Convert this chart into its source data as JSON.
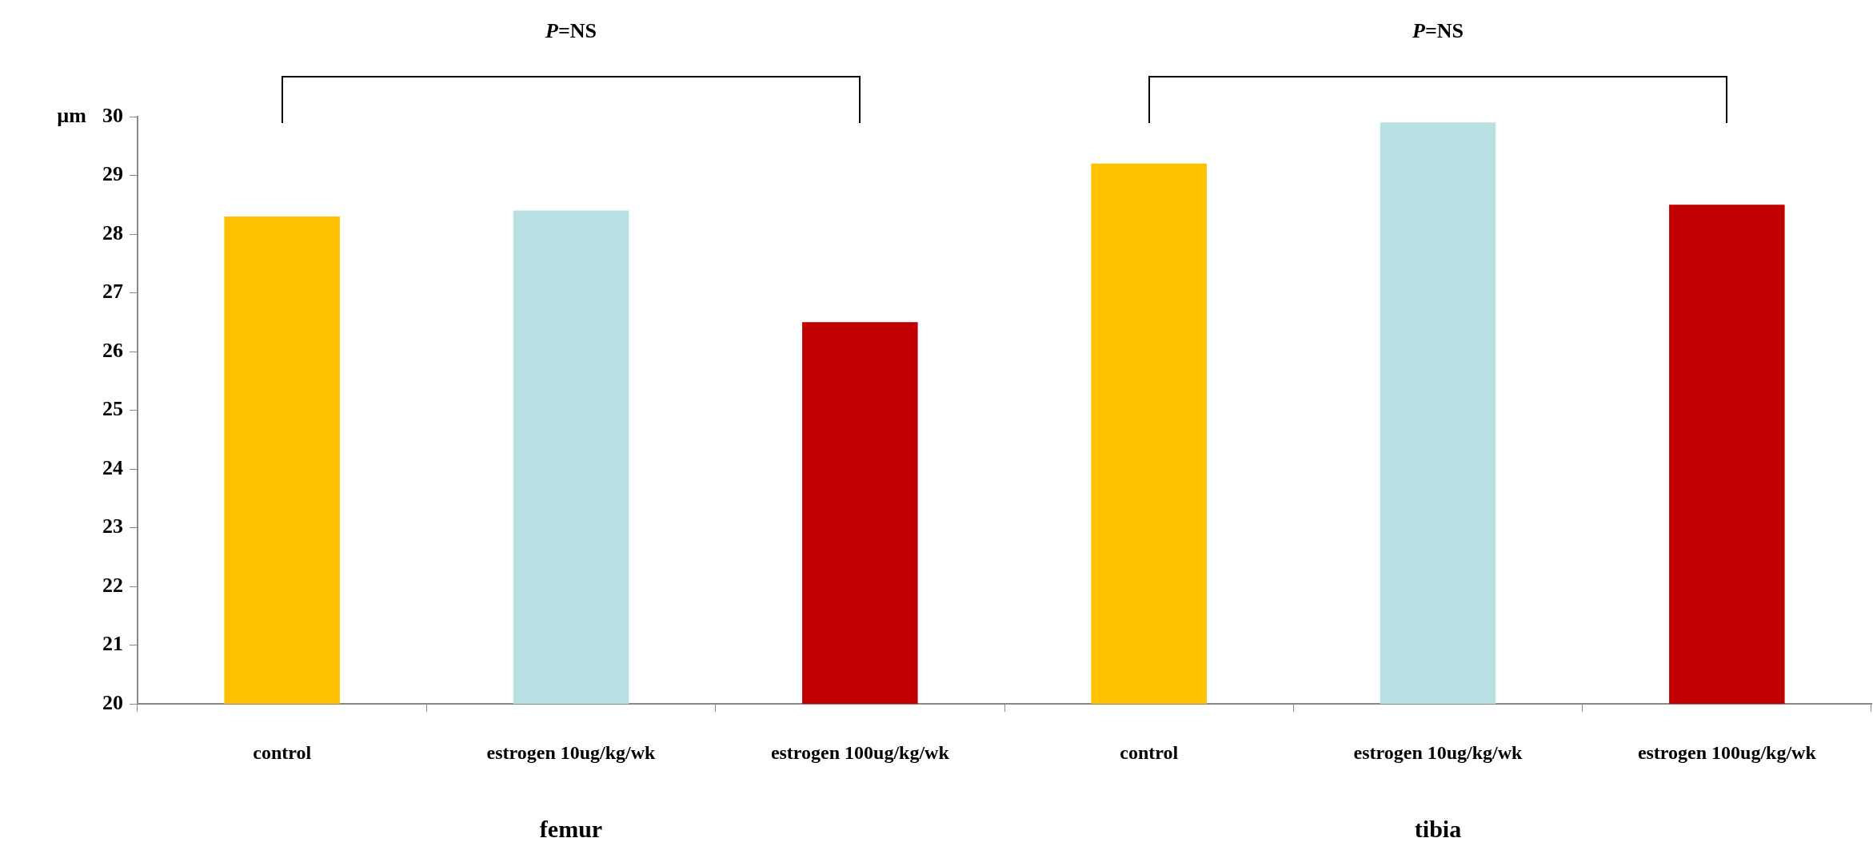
{
  "chart_data": {
    "type": "bar",
    "categories": [
      "control",
      "estrogen 10ug/kg/wk",
      "estrogen 100ug/kg/wk",
      "control",
      "estrogen 10ug/kg/wk",
      "estrogen 100ug/kg/wk"
    ],
    "values": [
      28.3,
      28.4,
      26.5,
      29.2,
      29.9,
      28.5
    ],
    "colors": [
      "#ffc000",
      "#b9e0e3",
      "#c00000",
      "#ffc000",
      "#b9e0e3",
      "#c00000"
    ],
    "ylabel": "µm",
    "ylim": [
      20,
      30
    ],
    "yticks": [
      20,
      21,
      22,
      23,
      24,
      25,
      26,
      27,
      28,
      29,
      30
    ],
    "grid": false,
    "legend": false,
    "annotations": [
      "P=NS",
      "P=NS",
      "femur",
      "tibia"
    ]
  }
}
